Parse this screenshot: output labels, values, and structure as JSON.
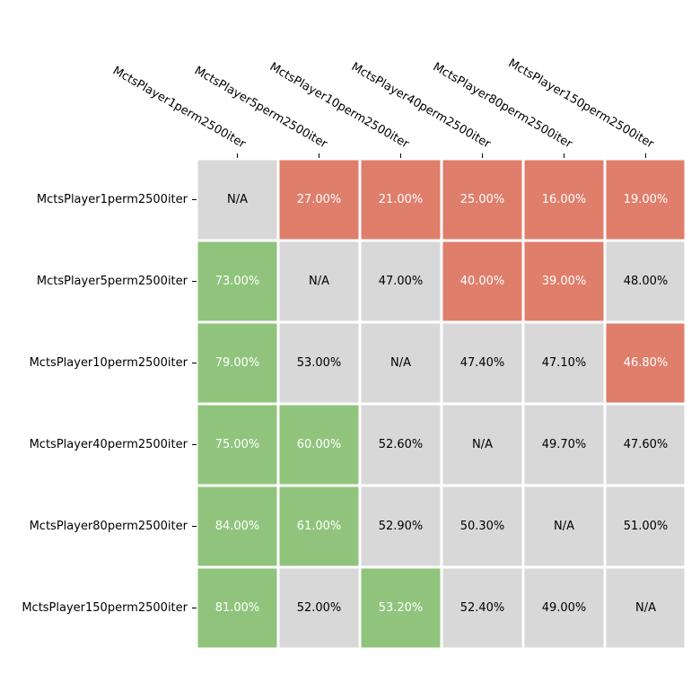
{
  "chart_data": {
    "type": "heatmap",
    "title": "",
    "xlabel": "",
    "ylabel": "",
    "x_position": "top",
    "grid": false,
    "columns": [
      "MctsPlayer1perm2500iter",
      "MctsPlayer5perm2500iter",
      "MctsPlayer10perm2500iter",
      "MctsPlayer40perm2500iter",
      "MctsPlayer80perm2500iter",
      "MctsPlayer150perm2500iter"
    ],
    "rows": [
      "MctsPlayer1perm2500iter",
      "MctsPlayer5perm2500iter",
      "MctsPlayer10perm2500iter",
      "MctsPlayer40perm2500iter",
      "MctsPlayer80perm2500iter",
      "MctsPlayer150perm2500iter"
    ],
    "labels": [
      [
        "N/A",
        "27.00%",
        "21.00%",
        "25.00%",
        "16.00%",
        "19.00%"
      ],
      [
        "73.00%",
        "N/A",
        "47.00%",
        "40.00%",
        "39.00%",
        "48.00%"
      ],
      [
        "79.00%",
        "53.00%",
        "N/A",
        "47.40%",
        "47.10%",
        "46.80%"
      ],
      [
        "75.00%",
        "60.00%",
        "52.60%",
        "N/A",
        "49.70%",
        "47.60%"
      ],
      [
        "84.00%",
        "61.00%",
        "52.90%",
        "50.30%",
        "N/A",
        "51.00%"
      ],
      [
        "81.00%",
        "52.00%",
        "53.20%",
        "52.40%",
        "49.00%",
        "N/A"
      ]
    ],
    "categories_grid": [
      [
        "neutral",
        "loss",
        "loss",
        "loss",
        "loss",
        "loss"
      ],
      [
        "win",
        "neutral",
        "neutral",
        "loss",
        "loss",
        "neutral"
      ],
      [
        "win",
        "neutral",
        "neutral",
        "neutral",
        "neutral",
        "loss"
      ],
      [
        "win",
        "win",
        "neutral",
        "neutral",
        "neutral",
        "neutral"
      ],
      [
        "win",
        "win",
        "neutral",
        "neutral",
        "neutral",
        "neutral"
      ],
      [
        "win",
        "neutral",
        "win",
        "neutral",
        "neutral",
        "neutral"
      ]
    ],
    "colors": {
      "win": "#90c47c",
      "loss": "#df7e6b",
      "neutral": "#d8d8d8",
      "text_on_color": "#ffffff",
      "text_on_neutral": "#000000"
    }
  }
}
